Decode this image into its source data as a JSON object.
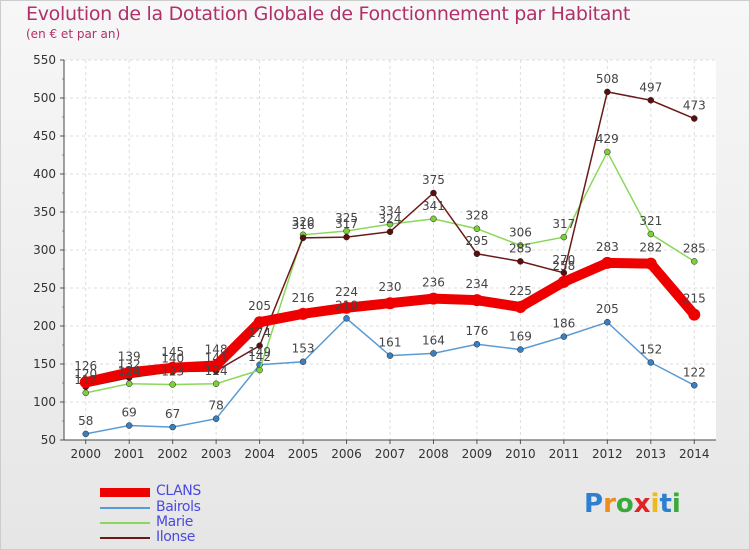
{
  "header": {
    "title": "Evolution de la Dotation Globale de Fonctionnement par Habitant",
    "subtitle": "(en € et par an)"
  },
  "logo": {
    "letters": [
      "P",
      "r",
      "o",
      "x",
      "i",
      "t",
      "i"
    ],
    "colors": [
      "#2f7fd0",
      "#f08c1c",
      "#3aaa3a",
      "#e02424",
      "#f0b81c",
      "#2f7fd0",
      "#3aaa3a"
    ]
  },
  "chart_data": {
    "type": "line",
    "title": "Evolution de la Dotation Globale de Fonctionnement par Habitant",
    "subtitle": "(en € et par an)",
    "xlabel": "",
    "ylabel": "",
    "ylim": [
      50,
      550
    ],
    "yticks": [
      50,
      100,
      150,
      200,
      250,
      300,
      350,
      400,
      450,
      500,
      550
    ],
    "x": [
      2000,
      2001,
      2002,
      2003,
      2004,
      2005,
      2006,
      2007,
      2008,
      2009,
      2010,
      2011,
      2012,
      2013,
      2014
    ],
    "grid": true,
    "legend_position": "bottom-left",
    "series": [
      {
        "name": "CLANS",
        "color": "#ee0000",
        "values": [
          126,
          139,
          145,
          148,
          205,
          216,
          224,
          230,
          236,
          234,
          225,
          258,
          283,
          282,
          215
        ]
      },
      {
        "name": "Bairols",
        "color": "#5b9bd5",
        "values": [
          58,
          69,
          67,
          78,
          149,
          153,
          210,
          161,
          164,
          176,
          169,
          186,
          205,
          152,
          122
        ]
      },
      {
        "name": "Marie",
        "color": "#8ad85a",
        "values": [
          112,
          124,
          123,
          124,
          142,
          320,
          325,
          334,
          341,
          328,
          306,
          317,
          429,
          321,
          285
        ]
      },
      {
        "name": "Ilonse",
        "color": "#6b1a1a",
        "values": [
          120,
          132,
          140,
          141,
          174,
          316,
          317,
          324,
          375,
          295,
          285,
          270,
          508,
          497,
          473
        ]
      }
    ]
  }
}
